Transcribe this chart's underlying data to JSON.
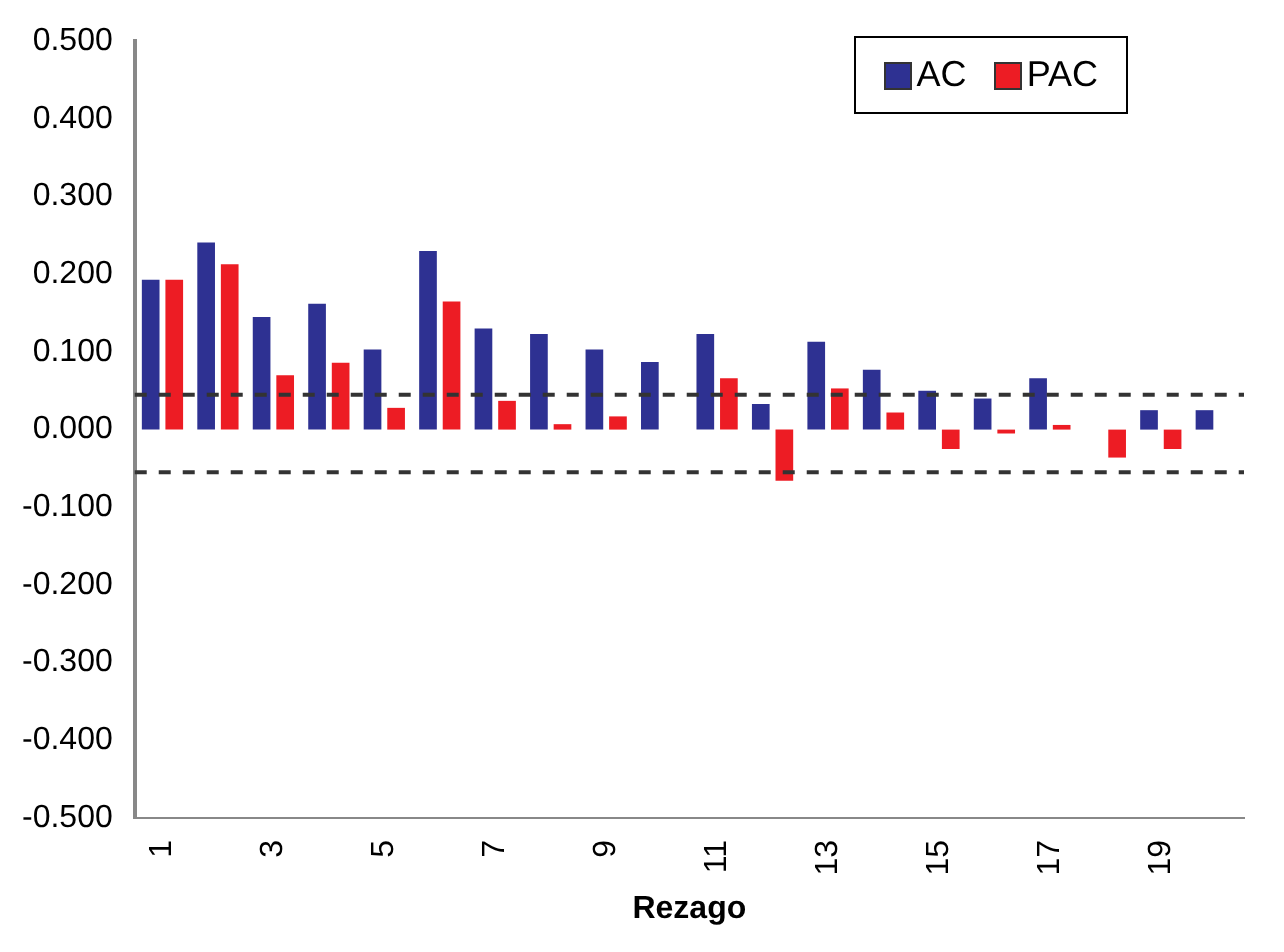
{
  "chart_data": {
    "type": "bar",
    "xlabel": "Rezago",
    "categories": [
      "1",
      null,
      "3",
      null,
      "5",
      null,
      "7",
      null,
      "9",
      null,
      "11",
      null,
      "13",
      null,
      "15",
      null,
      "17",
      null,
      "19",
      null
    ],
    "series": [
      {
        "name": "AC",
        "color": "#2e3192",
        "values": [
          0.193,
          0.241,
          0.145,
          0.162,
          0.103,
          0.23,
          0.13,
          0.123,
          0.103,
          0.087,
          0.123,
          0.033,
          0.113,
          0.077,
          0.05,
          0.04,
          0.066,
          null,
          0.025,
          0.025
        ]
      },
      {
        "name": "PAC",
        "color": "#ed1c24",
        "values": [
          0.193,
          0.213,
          0.07,
          0.086,
          0.028,
          0.165,
          0.037,
          0.007,
          0.017,
          null,
          0.066,
          -0.066,
          0.053,
          0.022,
          -0.025,
          -0.005,
          0.006,
          -0.036,
          -0.025,
          null
        ]
      }
    ],
    "ylim": [
      -0.5,
      0.5
    ],
    "yticks": [
      {
        "value": -0.5,
        "label": "-0.500"
      },
      {
        "value": -0.4,
        "label": "-0.400"
      },
      {
        "value": -0.3,
        "label": "-0.300"
      },
      {
        "value": -0.2,
        "label": "-0.200"
      },
      {
        "value": -0.1,
        "label": "-0.100"
      },
      {
        "value": 0,
        "label": "0.000"
      },
      {
        "value": 0.1,
        "label": "0.100"
      },
      {
        "value": 0.2,
        "label": "0.200"
      },
      {
        "value": 0.3,
        "label": "0.300"
      },
      {
        "value": 0.4,
        "label": "0.400"
      },
      {
        "value": 0.5,
        "label": "0.500"
      }
    ],
    "ref_lines": [
      {
        "axis": "y",
        "value": 0.045,
        "color": "#333333",
        "line_style": "dashed"
      },
      {
        "axis": "y",
        "value": -0.055,
        "color": "#333333",
        "line_style": "dashed"
      }
    ],
    "grid": false,
    "legend": "top right"
  }
}
